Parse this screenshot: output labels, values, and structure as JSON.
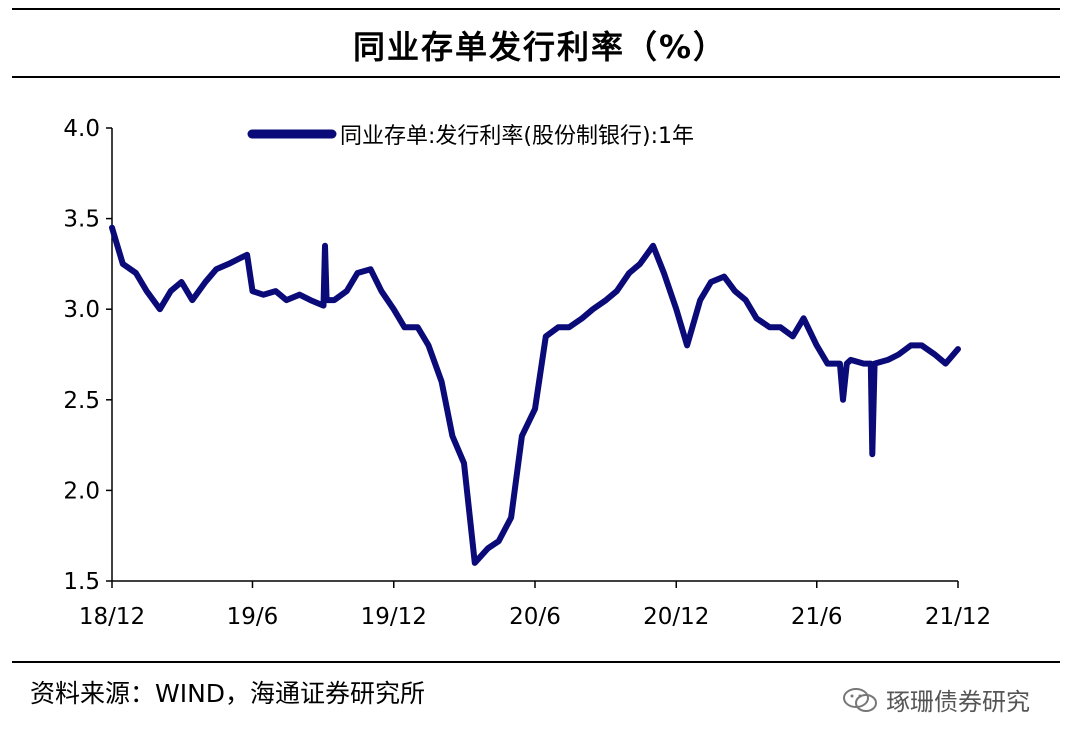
{
  "header": {
    "title": "同业存单发行利率（%）"
  },
  "footer": {
    "source": "资料来源：WIND，海通证券研究所",
    "watermark": "琢珊债券研究",
    "watermark_icon": "wechat-icon"
  },
  "colors": {
    "series": "#0a0a78",
    "axis": "#000000"
  },
  "chart_data": {
    "type": "line",
    "title": "",
    "xlabel": "",
    "ylabel": "",
    "ylim": [
      1.5,
      4.0
    ],
    "yticks": [
      1.5,
      2.0,
      2.5,
      3.0,
      3.5,
      4.0
    ],
    "ytick_labels": [
      "1.5",
      "2.0",
      "2.5",
      "3.0",
      "3.5",
      "4.0"
    ],
    "xlim": [
      "2018-12",
      "2021-12"
    ],
    "xticks": [
      "2018-12",
      "2019-06",
      "2019-12",
      "2020-06",
      "2020-12",
      "2021-06",
      "2021-12"
    ],
    "xtick_labels": [
      "18/12",
      "19/6",
      "19/12",
      "20/6",
      "20/12",
      "21/6",
      "21/12"
    ],
    "grid": false,
    "legend_position": "top",
    "series": [
      {
        "name": "同业存单:发行利率(股份制银行):1年",
        "x": [
          "2018-12-01",
          "2018-12-15",
          "2019-01-01",
          "2019-01-15",
          "2019-02-01",
          "2019-02-15",
          "2019-03-01",
          "2019-03-15",
          "2019-04-01",
          "2019-04-15",
          "2019-05-01",
          "2019-05-15",
          "2019-05-25",
          "2019-06-01",
          "2019-06-15",
          "2019-07-01",
          "2019-07-15",
          "2019-08-01",
          "2019-08-15",
          "2019-09-01",
          "2019-09-03",
          "2019-09-05",
          "2019-09-15",
          "2019-10-01",
          "2019-10-15",
          "2019-11-01",
          "2019-11-15",
          "2019-12-01",
          "2019-12-15",
          "2020-01-01",
          "2020-01-15",
          "2020-02-01",
          "2020-02-15",
          "2020-03-01",
          "2020-03-15",
          "2020-04-01",
          "2020-04-15",
          "2020-05-01",
          "2020-05-15",
          "2020-06-01",
          "2020-06-15",
          "2020-07-01",
          "2020-07-15",
          "2020-08-01",
          "2020-08-15",
          "2020-09-01",
          "2020-09-15",
          "2020-10-01",
          "2020-10-15",
          "2020-11-01",
          "2020-11-15",
          "2020-12-01",
          "2020-12-15",
          "2021-01-01",
          "2021-01-15",
          "2021-02-01",
          "2021-02-15",
          "2021-03-01",
          "2021-03-15",
          "2021-04-01",
          "2021-04-15",
          "2021-05-01",
          "2021-05-15",
          "2021-06-01",
          "2021-06-15",
          "2021-07-01",
          "2021-07-05",
          "2021-07-10",
          "2021-07-15",
          "2021-08-01",
          "2021-08-10",
          "2021-08-12",
          "2021-08-15",
          "2021-09-01",
          "2021-09-15",
          "2021-10-01",
          "2021-10-15",
          "2021-11-01",
          "2021-11-15",
          "2021-12-01"
        ],
        "values": [
          3.45,
          3.25,
          3.2,
          3.1,
          3.0,
          3.1,
          3.15,
          3.05,
          3.15,
          3.22,
          3.25,
          3.28,
          3.3,
          3.1,
          3.08,
          3.1,
          3.05,
          3.08,
          3.05,
          3.02,
          3.35,
          3.05,
          3.05,
          3.1,
          3.2,
          3.22,
          3.1,
          3.0,
          2.9,
          2.9,
          2.8,
          2.6,
          2.3,
          2.15,
          1.6,
          1.68,
          1.72,
          1.85,
          2.3,
          2.45,
          2.85,
          2.9,
          2.9,
          2.95,
          3.0,
          3.05,
          3.1,
          3.2,
          3.25,
          3.35,
          3.2,
          3.0,
          2.8,
          3.05,
          3.15,
          3.18,
          3.1,
          3.05,
          2.95,
          2.9,
          2.9,
          2.85,
          2.95,
          2.8,
          2.7,
          2.7,
          2.5,
          2.7,
          2.72,
          2.7,
          2.7,
          2.2,
          2.7,
          2.72,
          2.75,
          2.8,
          2.8,
          2.75,
          2.7,
          2.78
        ]
      }
    ]
  }
}
